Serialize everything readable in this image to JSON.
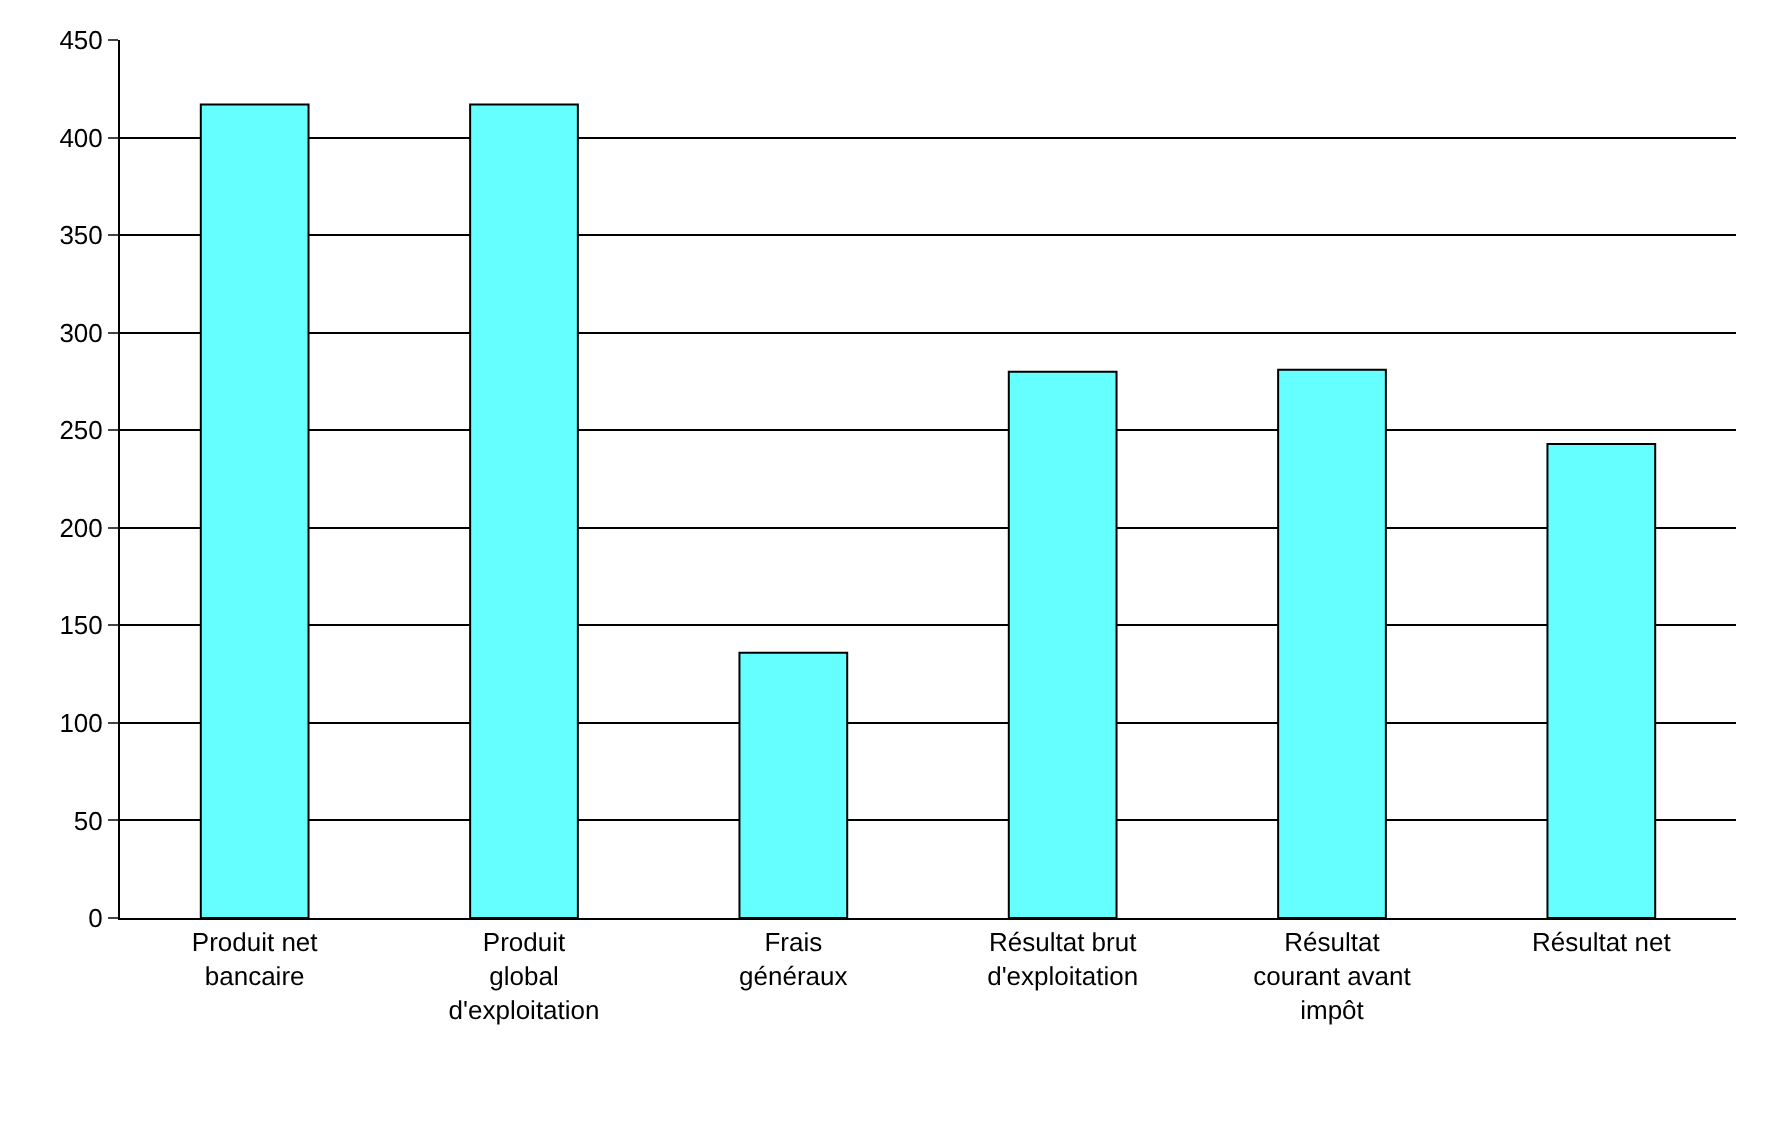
{
  "chart_data": {
    "type": "bar",
    "categories": [
      "Produit net bancaire",
      "Produit global d'exploitation",
      "Frais généraux",
      "Résultat brut d'exploitation",
      "Résultat courant avant impôt",
      "Résultat net"
    ],
    "values": [
      417,
      417,
      136,
      280,
      281,
      243
    ],
    "color": "#66ffff",
    "ylim": [
      0,
      450
    ],
    "yticks": [
      0,
      50,
      100,
      150,
      200,
      250,
      300,
      350,
      400,
      450
    ],
    "grid": "y"
  }
}
